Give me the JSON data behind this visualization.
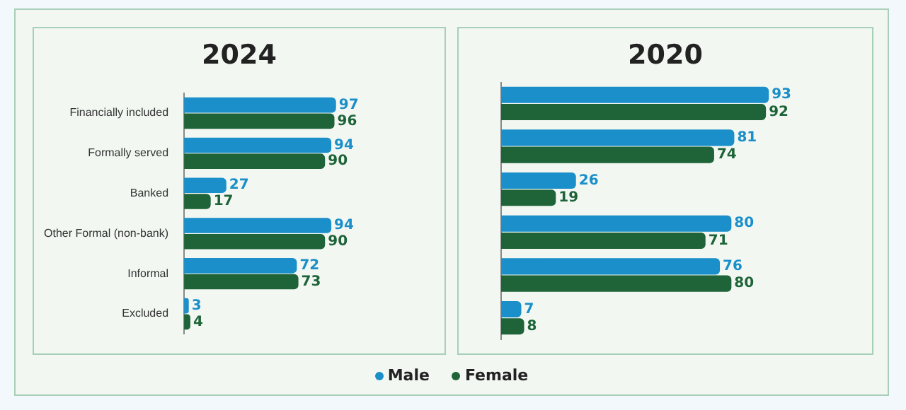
{
  "chart_data": [
    {
      "type": "bar",
      "orientation": "horizontal",
      "title": "2024",
      "categories": [
        "Financially included",
        "Formally served",
        "Banked",
        "Other Formal (non-bank)",
        "Informal",
        "Excluded"
      ],
      "series": [
        {
          "name": "Male",
          "color": "#1a8fc9",
          "values": [
            97,
            94,
            27,
            94,
            72,
            3
          ]
        },
        {
          "name": "Female",
          "color": "#1e6438",
          "values": [
            96,
            90,
            17,
            90,
            73,
            4
          ]
        }
      ],
      "data_labels": true,
      "tick_labels": "y",
      "grid": false,
      "legend": "bottom"
    },
    {
      "type": "bar",
      "orientation": "horizontal",
      "title": "2020",
      "categories": [
        null,
        null,
        null,
        null,
        null,
        null
      ],
      "series": [
        {
          "color": "#1a8fc9",
          "values": [
            93,
            81,
            26,
            80,
            76,
            7
          ]
        },
        {
          "color": "#1e6438",
          "values": [
            92,
            74,
            19,
            71,
            80,
            8
          ]
        }
      ],
      "data_labels": true,
      "tick_labels": false,
      "grid": false
    }
  ]
}
